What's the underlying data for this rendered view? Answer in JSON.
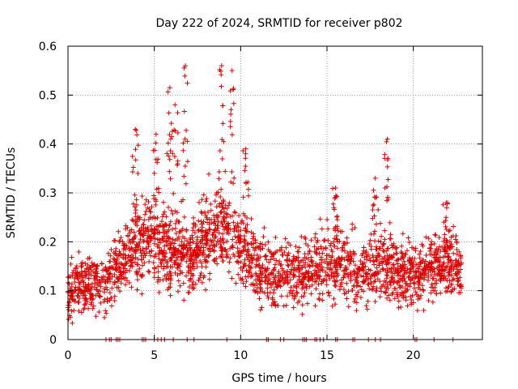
{
  "chart_data": {
    "type": "scatter",
    "title": "Day 222 of 2024, SRMTID for receiver p802",
    "xlabel": "GPS time / hours",
    "ylabel": "SRMTID / TECUs",
    "xlim": [
      0,
      24
    ],
    "ylim": [
      0,
      0.6
    ],
    "xticks": [
      0,
      5,
      10,
      15,
      20
    ],
    "yticks": [
      0,
      0.1,
      0.2,
      0.3,
      0.4,
      0.5,
      0.6
    ],
    "xtick_labels": [
      "0",
      "5",
      "10",
      "15",
      "20"
    ],
    "ytick_labels": [
      "0",
      "0.1",
      "0.2",
      "0.3",
      "0.4",
      "0.5",
      "0.6"
    ],
    "grid": true,
    "marker": "+",
    "color": "#dd0000",
    "x_max_data": 22.8,
    "trend": {
      "description": "approximate mean SRMTID (TECU) vs hour",
      "hours": [
        0,
        1,
        2,
        3,
        4,
        5,
        6,
        7,
        8,
        9,
        10,
        11,
        12,
        13,
        14,
        15,
        16,
        17,
        18,
        19,
        20,
        21,
        22,
        22.8
      ],
      "values": [
        0.1,
        0.11,
        0.11,
        0.15,
        0.19,
        0.21,
        0.18,
        0.17,
        0.21,
        0.24,
        0.19,
        0.14,
        0.13,
        0.14,
        0.14,
        0.16,
        0.15,
        0.13,
        0.16,
        0.14,
        0.13,
        0.15,
        0.16,
        0.14
      ]
    },
    "peaks": [
      {
        "x": 3.9,
        "y": 0.43
      },
      {
        "x": 5.1,
        "y": 0.42
      },
      {
        "x": 5.9,
        "y": 0.515
      },
      {
        "x": 6.2,
        "y": 0.48
      },
      {
        "x": 6.8,
        "y": 0.56
      },
      {
        "x": 8.9,
        "y": 0.56
      },
      {
        "x": 9.5,
        "y": 0.55
      },
      {
        "x": 10.3,
        "y": 0.39
      },
      {
        "x": 15.5,
        "y": 0.31
      },
      {
        "x": 17.8,
        "y": 0.33
      },
      {
        "x": 18.5,
        "y": 0.41
      },
      {
        "x": 21.9,
        "y": 0.28
      }
    ],
    "zero_points_x": [
      2.2,
      2.4,
      2.5,
      2.8,
      2.9,
      3.0,
      4.3,
      4.4,
      4.5,
      5.0,
      5.2,
      5.4,
      5.6,
      6.1,
      6.9,
      7.3,
      9.2,
      11.5,
      11.6,
      12.3,
      12.5,
      13.6,
      13.7,
      13.8,
      14.3,
      14.4,
      14.6,
      14.8,
      15.5,
      15.6,
      16.5,
      16.6,
      17.4,
      17.8,
      18.1,
      20.1,
      20.2,
      21.2,
      22.3
    ]
  }
}
